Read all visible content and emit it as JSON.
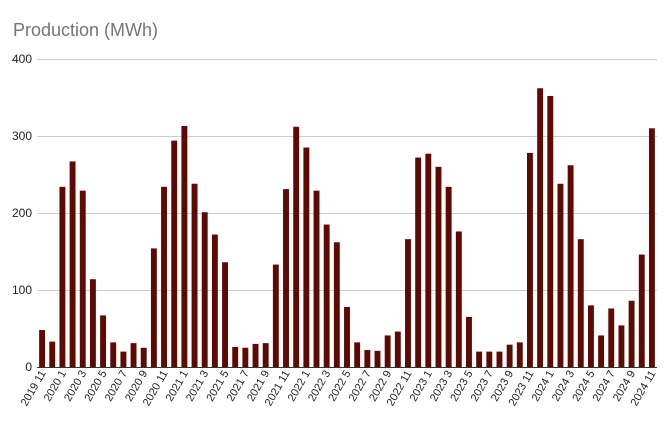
{
  "chart_data": {
    "type": "bar",
    "title": "Production (MWh)",
    "xlabel": "",
    "ylabel": "",
    "ylim": [
      0,
      400
    ],
    "yticks": [
      0,
      100,
      200,
      300,
      400
    ],
    "grid": true,
    "bar_color": "#5c0a02",
    "categories": [
      "2019 11",
      "2019 12",
      "2020 1",
      "2020 2",
      "2020 3",
      "2020 4",
      "2020 5",
      "2020 6",
      "2020 7",
      "2020 8",
      "2020 9",
      "2020 10",
      "2020 11",
      "2020 12",
      "2021 1",
      "2021 2",
      "2021 3",
      "2021 4",
      "2021 5",
      "2021 6",
      "2021 7",
      "2021 8",
      "2021 9",
      "2021 10",
      "2021 11",
      "2021 12",
      "2022 1",
      "2022 2",
      "2022 3",
      "2022 4",
      "2022 5",
      "2022 6",
      "2022 7",
      "2022 8",
      "2022 9",
      "2022 10",
      "2022 11",
      "2022 12",
      "2023 1",
      "2023 2",
      "2023 3",
      "2023 4",
      "2023 5",
      "2023 6",
      "2023 7",
      "2023 8",
      "2023 9",
      "2023 10",
      "2023 11",
      "2023 12",
      "2024 1",
      "2024 2",
      "2024 3",
      "2024 4",
      "2024 5",
      "2024 6",
      "2024 7",
      "2024 8",
      "2024 9",
      "2024 10",
      "2024 11"
    ],
    "visible_tick_labels": [
      "2019 11",
      "2020 1",
      "2020 3",
      "2020 5",
      "2020 7",
      "2020 9",
      "2020 11",
      "2021 1",
      "2021 3",
      "2021 5",
      "2021 7",
      "2021 9",
      "2021 11",
      "2022 1",
      "2022 3",
      "2022 5",
      "2022 7",
      "2022 9",
      "2022 11",
      "2023 1",
      "2023 3",
      "2023 5",
      "2023 7",
      "2023 9",
      "2023 11",
      "2024 1",
      "2024 3",
      "2024 5",
      "2024 7",
      "2024 9",
      "2024 11"
    ],
    "values": [
      48,
      33,
      234,
      267,
      229,
      114,
      67,
      32,
      20,
      31,
      25,
      154,
      234,
      294,
      313,
      238,
      201,
      172,
      136,
      26,
      25,
      30,
      31,
      133,
      231,
      312,
      285,
      229,
      185,
      162,
      78,
      32,
      22,
      21,
      41,
      46,
      166,
      272,
      277,
      260,
      234,
      176,
      65,
      20,
      20,
      20,
      29,
      32,
      278,
      362,
      352,
      238,
      262,
      166,
      80,
      41,
      76,
      54,
      86,
      146,
      310
    ]
  }
}
